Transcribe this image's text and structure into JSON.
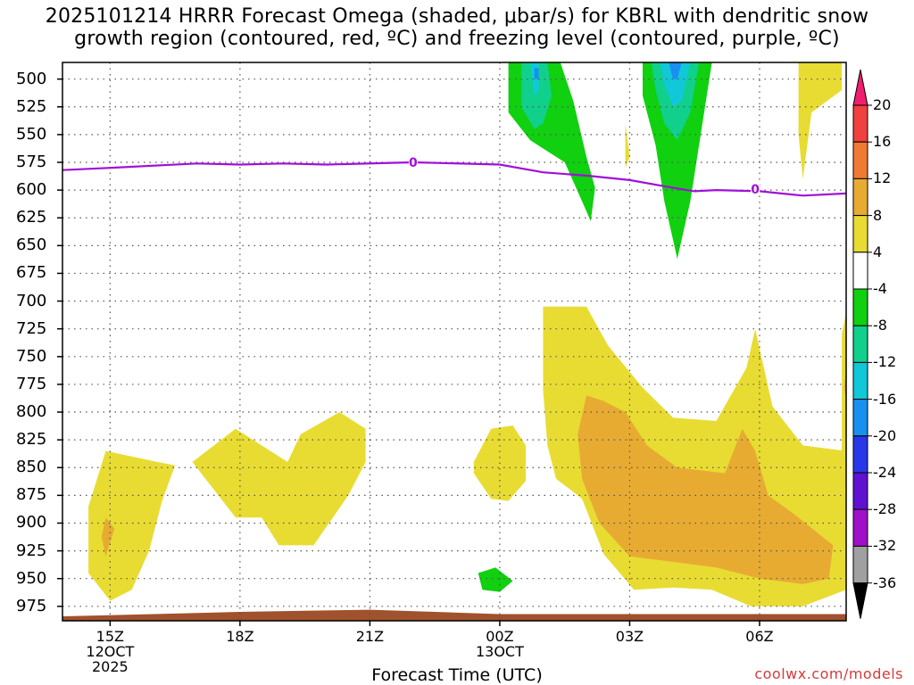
{
  "title": {
    "line1": "2025101214 HRRR Forecast Omega (shaded, μbar/s) for KBRL with dendritic snow",
    "line2": "growth region (contoured, red, ºC) and freezing level (contoured, purple, ºC)"
  },
  "x_axis": {
    "title": "Forecast Time (UTC)",
    "ticks": [
      {
        "label": "15Z",
        "sub": [
          "12OCT",
          "2025"
        ]
      },
      {
        "label": "18Z",
        "sub": []
      },
      {
        "label": "21Z",
        "sub": []
      },
      {
        "label": "00Z",
        "sub": [
          "13OCT"
        ]
      },
      {
        "label": "03Z",
        "sub": []
      },
      {
        "label": "06Z",
        "sub": []
      }
    ]
  },
  "credit": "coolwx.com/models",
  "chart_data": {
    "type": "contour-filled time-height cross section",
    "x_unit": "hours after 12OCT 12Z",
    "x_range": [
      13.9,
      32.0
    ],
    "y_unit": "hPa",
    "y_range": [
      988,
      485
    ],
    "y_ticks": [
      500,
      525,
      550,
      575,
      600,
      625,
      650,
      675,
      700,
      725,
      750,
      775,
      800,
      825,
      850,
      875,
      900,
      925,
      950,
      975
    ],
    "x_tick_hours": [
      15,
      18,
      21,
      24,
      27,
      30
    ],
    "colorbar": {
      "unit": "μbar/s",
      "labels": [
        "20",
        "16",
        "12",
        "8",
        "4",
        "-4",
        "-8",
        "-12",
        "-16",
        "-20",
        "-24",
        "-28",
        "-32",
        "-36"
      ],
      "colors": [
        "#f01e6e",
        "#f04040",
        "#f07a32",
        "#e8ab32",
        "#e8dc32",
        "#ffffff",
        "#10d010",
        "#10d08c",
        "#10c8d8",
        "#1890f0",
        "#2838e8",
        "#6010d0",
        "#a010c8",
        "#a0a0a0",
        "#000000"
      ]
    },
    "freezing_level": {
      "label": "0",
      "color": "#a010d8",
      "points": [
        [
          13.9,
          582
        ],
        [
          15.0,
          580
        ],
        [
          17.0,
          576
        ],
        [
          18.0,
          577
        ],
        [
          19.0,
          576
        ],
        [
          20.0,
          577
        ],
        [
          22.0,
          575
        ],
        [
          24.0,
          577
        ],
        [
          25.0,
          584
        ],
        [
          26.0,
          587
        ],
        [
          27.0,
          591
        ],
        [
          28.0,
          598
        ],
        [
          28.5,
          601
        ],
        [
          29.0,
          600
        ],
        [
          30.0,
          601
        ],
        [
          31.0,
          605
        ],
        [
          32.0,
          603
        ]
      ],
      "label_positions": [
        [
          22.0,
          575
        ],
        [
          29.9,
          599
        ]
      ]
    },
    "omega_regions": [
      {
        "value_range": "-8 to -4",
        "color": "#10d010",
        "polygon": [
          [
            24.2,
            485
          ],
          [
            25.4,
            485
          ],
          [
            25.7,
            520
          ],
          [
            26.0,
            570
          ],
          [
            26.2,
            598
          ],
          [
            26.1,
            628
          ],
          [
            25.9,
            610
          ],
          [
            25.5,
            575
          ],
          [
            24.7,
            555
          ],
          [
            24.2,
            530
          ]
        ]
      },
      {
        "value_range": "-12 to -8",
        "color": "#10d08c",
        "polygon": [
          [
            24.5,
            485
          ],
          [
            25.1,
            485
          ],
          [
            25.2,
            515
          ],
          [
            25.0,
            540
          ],
          [
            24.8,
            545
          ],
          [
            24.5,
            525
          ]
        ]
      },
      {
        "value_range": "-16 to -12",
        "color": "#10c8d8",
        "polygon": [
          [
            24.7,
            485
          ],
          [
            24.9,
            485
          ],
          [
            24.9,
            510
          ],
          [
            24.8,
            515
          ]
        ]
      },
      {
        "value_range": "-20 to -16",
        "color": "#1890f0",
        "polygon": [
          [
            24.8,
            490
          ],
          [
            24.9,
            490
          ],
          [
            24.9,
            500
          ],
          [
            24.8,
            500
          ]
        ]
      },
      {
        "value_range": "-8 to -4",
        "color": "#10d010",
        "polygon": [
          [
            27.3,
            485
          ],
          [
            28.9,
            485
          ],
          [
            28.6,
            560
          ],
          [
            28.4,
            610
          ],
          [
            28.1,
            662
          ],
          [
            27.8,
            610
          ],
          [
            27.6,
            560
          ],
          [
            27.3,
            515
          ]
        ]
      },
      {
        "value_range": "-12 to -8",
        "color": "#10d08c",
        "polygon": [
          [
            27.5,
            485
          ],
          [
            28.6,
            485
          ],
          [
            28.4,
            530
          ],
          [
            28.1,
            555
          ],
          [
            27.8,
            540
          ],
          [
            27.6,
            510
          ]
        ]
      },
      {
        "value_range": "-16 to -12",
        "color": "#10c8d8",
        "polygon": [
          [
            27.7,
            485
          ],
          [
            28.4,
            485
          ],
          [
            28.2,
            520
          ],
          [
            28.0,
            525
          ],
          [
            27.8,
            505
          ]
        ]
      },
      {
        "value_range": "-20 to -16",
        "color": "#1890f0",
        "polygon": [
          [
            27.9,
            485
          ],
          [
            28.2,
            485
          ],
          [
            28.1,
            500
          ],
          [
            28.0,
            500
          ]
        ]
      },
      {
        "value_range": "-8 to -4",
        "color": "#10d010",
        "polygon": [
          [
            23.5,
            945
          ],
          [
            23.9,
            940
          ],
          [
            24.3,
            952
          ],
          [
            24.0,
            962
          ],
          [
            23.6,
            960
          ]
        ]
      },
      {
        "value_range": "4 to 8",
        "color": "#e8dc32",
        "polygon": [
          [
            26.9,
            540
          ],
          [
            27.0,
            570
          ],
          [
            26.9,
            580
          ]
        ]
      },
      {
        "value_range": "4 to 8",
        "color": "#e8dc32",
        "polygon": [
          [
            30.9,
            485
          ],
          [
            31.9,
            485
          ],
          [
            31.9,
            510
          ],
          [
            31.2,
            530
          ],
          [
            31.0,
            590
          ],
          [
            30.9,
            550
          ],
          [
            30.9,
            520
          ]
        ]
      },
      {
        "value_range": "4 to 8",
        "color": "#e8dc32",
        "polygon": [
          [
            14.5,
            885
          ],
          [
            14.9,
            835
          ],
          [
            16.1,
            845
          ],
          [
            16.5,
            848
          ],
          [
            16.2,
            880
          ],
          [
            15.9,
            925
          ],
          [
            15.5,
            960
          ],
          [
            15.0,
            970
          ],
          [
            14.5,
            945
          ]
        ]
      },
      {
        "value_range": "8 to 12",
        "color": "#e8ab32",
        "polygon": [
          [
            14.9,
            895
          ],
          [
            15.1,
            905
          ],
          [
            14.9,
            930
          ],
          [
            14.8,
            912
          ]
        ]
      },
      {
        "value_range": "4 to 8",
        "color": "#e8dc32",
        "polygon": [
          [
            16.9,
            845
          ],
          [
            17.9,
            815
          ],
          [
            19.1,
            845
          ],
          [
            19.4,
            820
          ],
          [
            20.3,
            800
          ],
          [
            20.9,
            815
          ],
          [
            20.9,
            845
          ],
          [
            20.5,
            875
          ],
          [
            19.7,
            920
          ],
          [
            18.9,
            920
          ],
          [
            18.5,
            895
          ],
          [
            17.9,
            895
          ],
          [
            17.4,
            870
          ]
        ]
      },
      {
        "value_range": "4 to 8",
        "color": "#e8dc32",
        "polygon": [
          [
            23.4,
            845
          ],
          [
            23.8,
            815
          ],
          [
            24.3,
            812
          ],
          [
            24.6,
            830
          ],
          [
            24.6,
            862
          ],
          [
            24.2,
            880
          ],
          [
            23.8,
            878
          ],
          [
            23.4,
            855
          ]
        ]
      },
      {
        "value_range": "4 to 8",
        "color": "#e8dc32",
        "polygon": [
          [
            25.0,
            705
          ],
          [
            26.0,
            705
          ],
          [
            26.5,
            740
          ],
          [
            27.3,
            778
          ],
          [
            28.0,
            805
          ],
          [
            29.0,
            808
          ],
          [
            29.7,
            760
          ],
          [
            29.9,
            725
          ],
          [
            30.3,
            795
          ],
          [
            31.0,
            830
          ],
          [
            32.0,
            835
          ],
          [
            32.0,
            960
          ],
          [
            31.0,
            975
          ],
          [
            29.8,
            975
          ],
          [
            28.9,
            960
          ],
          [
            28.0,
            958
          ],
          [
            27.1,
            960
          ],
          [
            26.4,
            928
          ],
          [
            25.9,
            878
          ],
          [
            25.3,
            860
          ],
          [
            25.1,
            830
          ],
          [
            25.0,
            780
          ]
        ]
      },
      {
        "value_range": "8 to 12",
        "color": "#e8ab32",
        "polygon": [
          [
            25.8,
            820
          ],
          [
            26.0,
            785
          ],
          [
            26.4,
            790
          ],
          [
            26.9,
            800
          ],
          [
            27.4,
            830
          ],
          [
            28.1,
            850
          ],
          [
            29.2,
            855
          ],
          [
            29.6,
            815
          ],
          [
            29.9,
            835
          ],
          [
            30.2,
            875
          ],
          [
            30.8,
            892
          ],
          [
            31.7,
            920
          ],
          [
            31.6,
            950
          ],
          [
            31.0,
            955
          ],
          [
            30.0,
            950
          ],
          [
            29.0,
            940
          ],
          [
            28.0,
            935
          ],
          [
            27.0,
            930
          ],
          [
            26.3,
            900
          ],
          [
            25.9,
            860
          ]
        ]
      },
      {
        "value_range": "4 to 8",
        "color": "#e8dc32",
        "polygon": [
          [
            32.0,
            710
          ],
          [
            31.9,
            730
          ],
          [
            31.9,
            840
          ],
          [
            32.0,
            850
          ]
        ]
      },
      {
        "value_range": "8 to 12",
        "color": "#e8ab32",
        "polygon": [
          [
            32.0,
            760
          ],
          [
            31.95,
            778
          ],
          [
            32.0,
            790
          ]
        ]
      }
    ],
    "terrain": {
      "color": "#a0522d",
      "surface_pressure": [
        [
          13.9,
          984
        ],
        [
          16.0,
          982
        ],
        [
          18.0,
          980
        ],
        [
          19.5,
          979
        ],
        [
          21.0,
          978
        ],
        [
          22.5,
          980
        ],
        [
          24.0,
          982
        ],
        [
          26.0,
          982
        ],
        [
          32.0,
          982
        ]
      ]
    }
  }
}
